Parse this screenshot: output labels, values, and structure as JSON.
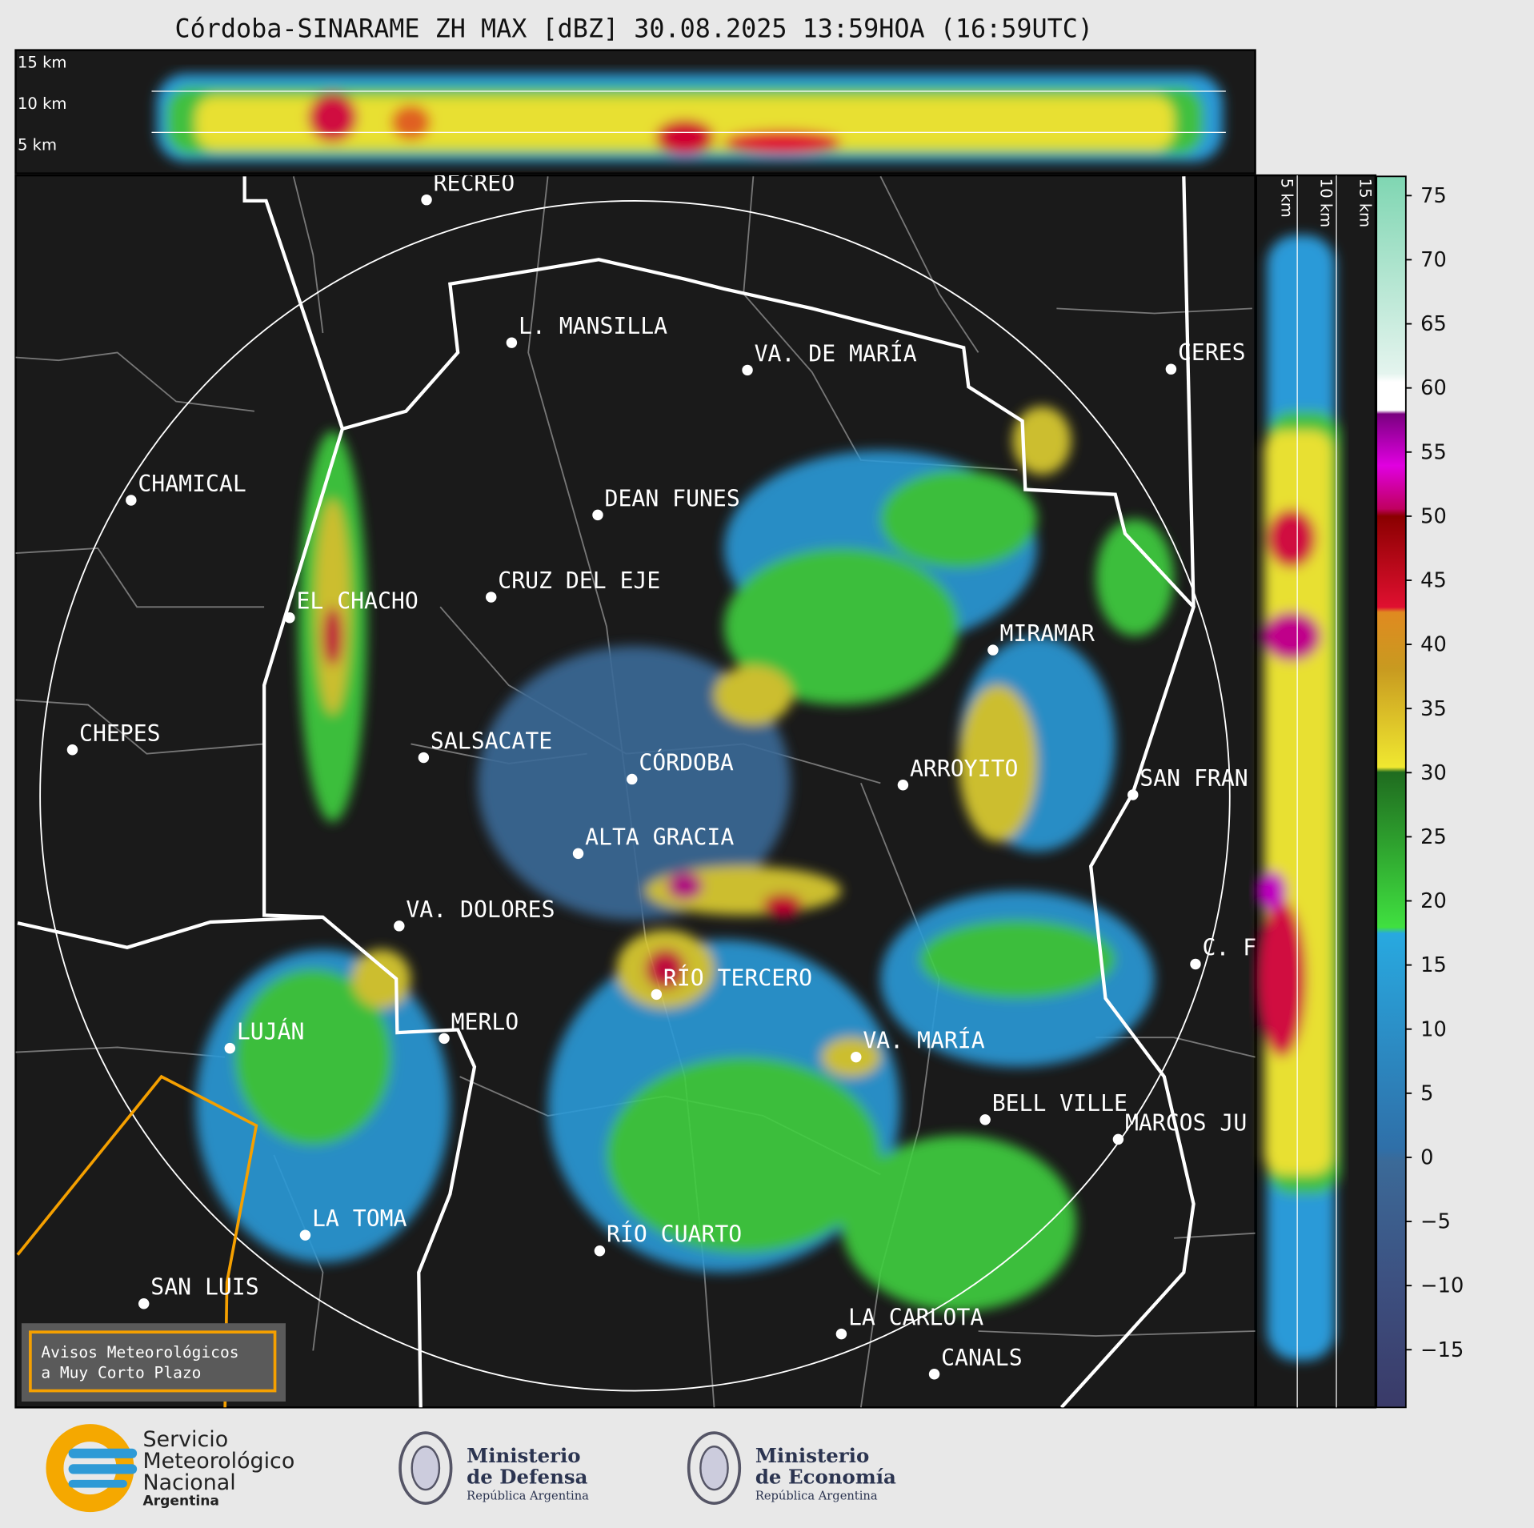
{
  "title": "Córdoba-SINARAME ZH MAX [dBZ] 30.08.2025 13:59HOA (16:59UTC)",
  "top_panel": {
    "km_labels": [
      "15 km",
      "10 km",
      "5 km"
    ]
  },
  "right_panel": {
    "km_labels": [
      "5 km",
      "10 km",
      "15 km"
    ]
  },
  "cities": [
    "RECREO",
    "L. MANSILLA",
    "VA. DE MARÍA",
    "CERES",
    "CHAMICAL",
    "DEAN FUNES",
    "CRUZ DEL EJE",
    "EL CHACHO",
    "MIRAMAR",
    "CHEPES",
    "SALSACATE",
    "CÓRDOBA",
    "ARROYITO",
    "SAN FRAN",
    "ALTA GRACIA",
    "VA. DOLORES",
    "C. F",
    "RÍO TERCERO",
    "MERLO",
    "LUJÁN",
    "VA. MARÍA",
    "BELL VILLE",
    "MARCOS JU",
    "LA TOMA",
    "RÍO CUARTO",
    "SAN LUIS",
    "LA CARLOTA",
    "CANALS"
  ],
  "colorbar": {
    "ylim": [
      -19.5,
      76.5
    ],
    "yticks": [
      75,
      70,
      65,
      60,
      55,
      50,
      45,
      40,
      35,
      30,
      25,
      20,
      15,
      10,
      5,
      0,
      {
        "value": -5,
        "label": "−5"
      },
      {
        "value": -10,
        "label": "−10"
      },
      {
        "value": -15,
        "label": "−15"
      }
    ]
  },
  "notice": [
    "Avisos Meteorológicos",
    "a Muy Corto Plazo"
  ],
  "logos": {
    "smn": [
      "Servicio",
      "Meteorológico",
      "Nacional",
      "Argentina"
    ],
    "defensa": [
      "Ministerio",
      "de Defensa",
      "República Argentina"
    ],
    "economia": [
      "Ministerio",
      "de Economía",
      "República Argentina"
    ]
  }
}
